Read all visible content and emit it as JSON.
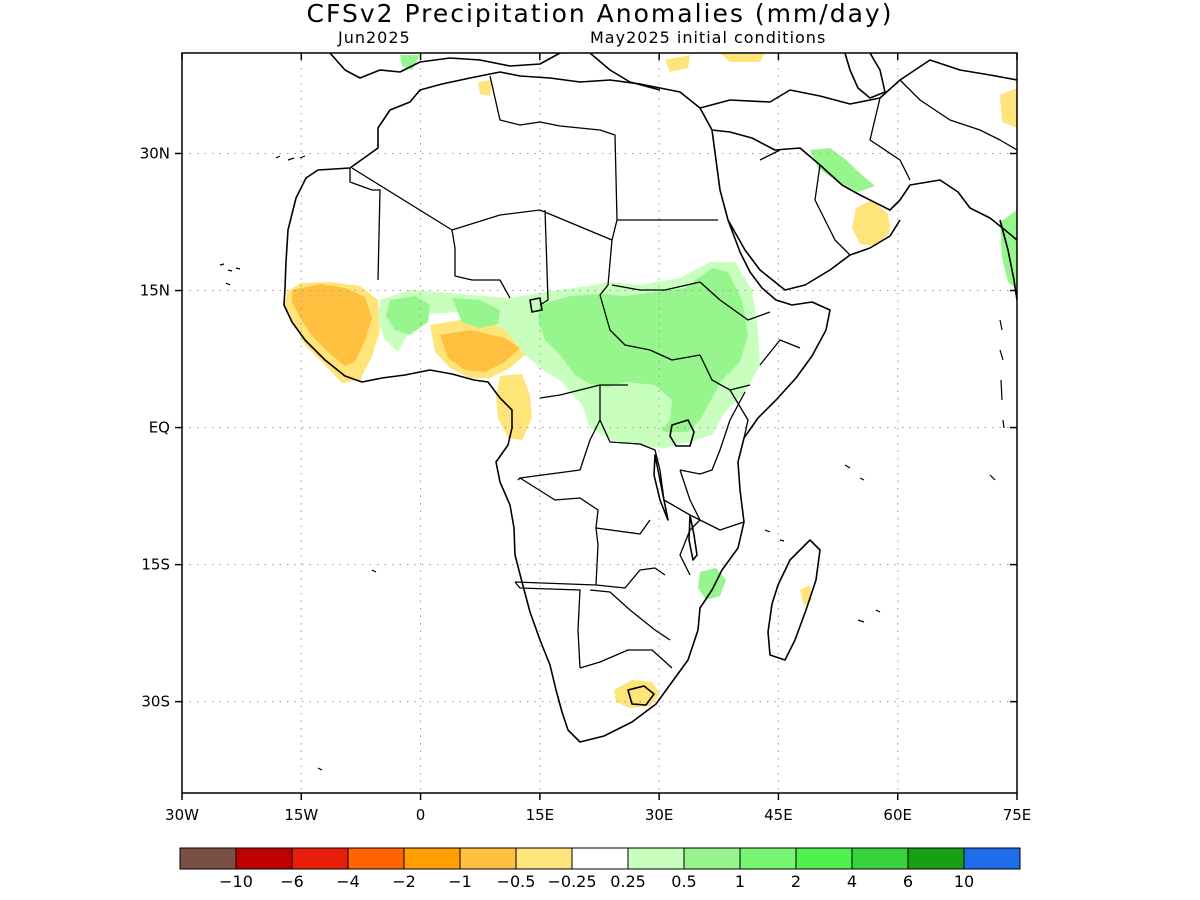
{
  "title": "CFSv2 Precipitation Anomalies (mm/day)",
  "subtitle_left": "Jun2025",
  "subtitle_right": "May2025 initial conditions",
  "map": {
    "lon_range": [
      -30,
      75
    ],
    "lat_range": [
      -40,
      41
    ],
    "lon_ticks": [
      {
        "lon": -30,
        "label": "30W"
      },
      {
        "lon": -15,
        "label": "15W"
      },
      {
        "lon": 0,
        "label": "0"
      },
      {
        "lon": 15,
        "label": "15E"
      },
      {
        "lon": 30,
        "label": "30E"
      },
      {
        "lon": 45,
        "label": "45E"
      },
      {
        "lon": 60,
        "label": "60E"
      },
      {
        "lon": 75,
        "label": "75E"
      }
    ],
    "lat_ticks": [
      {
        "lat": 30,
        "label": "30N"
      },
      {
        "lat": 15,
        "label": "15N"
      },
      {
        "lat": 0,
        "label": "EQ"
      },
      {
        "lat": -15,
        "label": "15S"
      },
      {
        "lat": -30,
        "label": "30S"
      }
    ],
    "grid": true
  },
  "colorbar": {
    "colors": [
      "#7a5044",
      "#c00000",
      "#e81e0a",
      "#ff6400",
      "#ffa000",
      "#ffc040",
      "#ffe47a",
      "#ffffff",
      "#c8ffbe",
      "#96f58c",
      "#78f573",
      "#50f050",
      "#37d23c",
      "#16a014",
      "#1e6eeb"
    ],
    "labels": [
      "−10",
      "−6",
      "−4",
      "−2",
      "−1",
      "−0.5",
      "−0.25",
      "0.25",
      "0.5",
      "1",
      "2",
      "4",
      "6",
      "10"
    ]
  },
  "anomaly_regions": [
    {
      "category": "-0.5 to -0.25",
      "color": "#ffe47a",
      "area": "Guinea coast / Sierra Leone / Liberia"
    },
    {
      "category": "-1 to -0.5",
      "color": "#ffc040",
      "area": "Guinea / Sierra Leone interior"
    },
    {
      "category": "-0.5 to -0.25",
      "color": "#ffe47a",
      "area": "Ghana / Togo / Nigeria south"
    },
    {
      "category": "-1 to -0.5",
      "color": "#ffc040",
      "area": "Southern Nigeria"
    },
    {
      "category": "-0.5 to -0.25",
      "color": "#ffe47a",
      "area": "Cameroon / Gabon coast"
    },
    {
      "category": "-0.5 to -0.25",
      "color": "#ffe47a",
      "area": "Lesotho / Free State"
    },
    {
      "category": "-0.5 to -0.25",
      "color": "#ffe47a",
      "area": "Oman / UAE"
    },
    {
      "category": "-0.5 to -0.25",
      "color": "#ffe47a",
      "area": "Mediterranean / Iran"
    },
    {
      "category": "0.25 to 0.5",
      "color": "#c8ffbe",
      "area": "Sahel (Mali to Sudan)"
    },
    {
      "category": "0.5 to 1",
      "color": "#96f58c",
      "area": "Sudan / South Sudan"
    },
    {
      "category": "0.5 to 1",
      "color": "#96f58c",
      "area": "Ethiopian highlands"
    },
    {
      "category": "0.5 to 1",
      "color": "#96f58c",
      "area": "Uganda / DRC east"
    },
    {
      "category": "0.5 to 1",
      "color": "#96f58c",
      "area": "Mozambique"
    },
    {
      "category": "0.5 to 1",
      "color": "#96f58c",
      "area": "Western India coast"
    },
    {
      "category": "0.5 to 1",
      "color": "#96f58c",
      "area": "Eastern Mediterranean / Saudi"
    }
  ]
}
